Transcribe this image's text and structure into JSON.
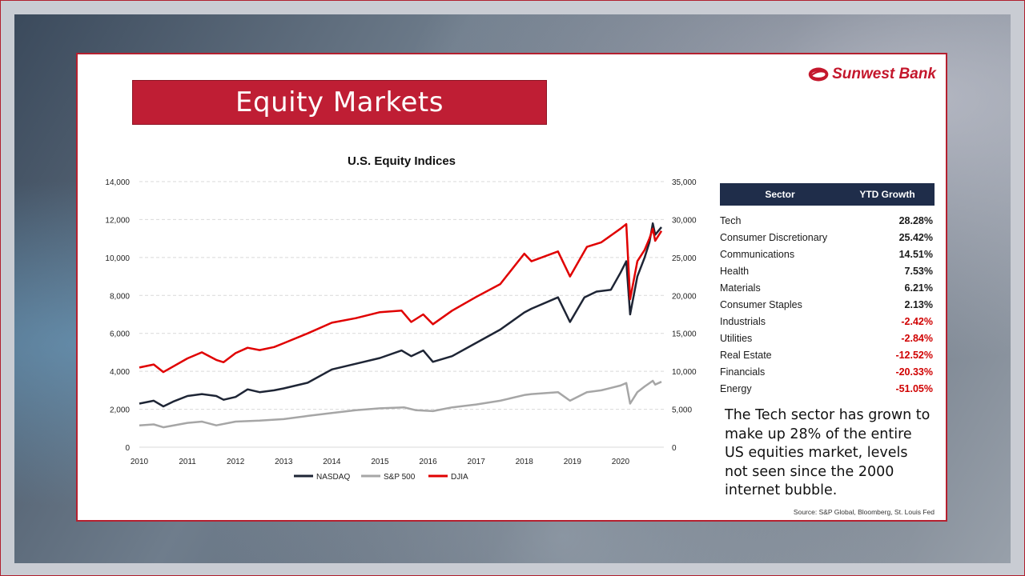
{
  "slide": {
    "title": "Equity Markets",
    "logo_text": "Sunwest Bank",
    "note": "The Tech sector has grown to make up 28% of the entire US equities market, levels not seen since the 2000 internet bubble.",
    "source": "Source: S&P Global, Bloomberg, St. Louis Fed"
  },
  "sector_table": {
    "headers": [
      "Sector",
      "YTD Growth"
    ],
    "rows": [
      {
        "sector": "Tech",
        "growth": "28.28%",
        "positive": true
      },
      {
        "sector": "Consumer Discretionary",
        "growth": "25.42%",
        "positive": true
      },
      {
        "sector": "Communications",
        "growth": "14.51%",
        "positive": true
      },
      {
        "sector": "Health",
        "growth": "7.53%",
        "positive": true
      },
      {
        "sector": "Materials",
        "growth": "6.21%",
        "positive": true
      },
      {
        "sector": "Consumer Staples",
        "growth": "2.13%",
        "positive": true
      },
      {
        "sector": "Industrials",
        "growth": "-2.42%",
        "positive": false
      },
      {
        "sector": "Utilities",
        "growth": "-2.84%",
        "positive": false
      },
      {
        "sector": "Real Estate",
        "growth": "-12.52%",
        "positive": false
      },
      {
        "sector": "Financials",
        "growth": "-20.33%",
        "positive": false
      },
      {
        "sector": "Energy",
        "growth": "-51.05%",
        "positive": false
      }
    ]
  },
  "colors": {
    "brand_red": "#bf1e34",
    "header_navy": "#1f2d4a",
    "nasdaq": "#1e2535",
    "sp500": "#a6a6a6",
    "djia": "#e00000",
    "negative": "#d00000",
    "positive": "#1a1a1a"
  },
  "chart_data": {
    "type": "line",
    "title": "U.S. Equity Indices",
    "x_ticks": [
      "2010",
      "2011",
      "2012",
      "2013",
      "2014",
      "2015",
      "2016",
      "2017",
      "2018",
      "2019",
      "2020"
    ],
    "xlim": [
      2010,
      2020.9
    ],
    "y_left": {
      "lim": [
        0,
        14000
      ],
      "ticks": [
        "0",
        "2,000",
        "4,000",
        "6,000",
        "8,000",
        "10,000",
        "12,000",
        "14,000"
      ],
      "values": [
        0,
        2000,
        4000,
        6000,
        8000,
        10000,
        12000,
        14000
      ]
    },
    "y_right": {
      "lim": [
        0,
        35000
      ],
      "ticks": [
        "0",
        "5,000",
        "10,000",
        "15,000",
        "20,000",
        "25,000",
        "30,000",
        "35,000"
      ],
      "values": [
        0,
        5000,
        10000,
        15000,
        20000,
        25000,
        30000,
        35000
      ]
    },
    "grid": true,
    "legend_position": "bottom",
    "series": [
      {
        "name": "NASDAQ",
        "axis": "left",
        "x": [
          2010.0,
          2010.3,
          2010.5,
          2010.7,
          2011.0,
          2011.3,
          2011.6,
          2011.75,
          2012.0,
          2012.25,
          2012.5,
          2012.8,
          2013.0,
          2013.5,
          2014.0,
          2014.5,
          2015.0,
          2015.45,
          2015.65,
          2015.9,
          2016.1,
          2016.5,
          2017.0,
          2017.5,
          2018.0,
          2018.15,
          2018.7,
          2018.95,
          2019.25,
          2019.5,
          2019.8,
          2020.0,
          2020.12,
          2020.2,
          2020.35,
          2020.5,
          2020.6,
          2020.67,
          2020.72,
          2020.85
        ],
        "y": [
          2300,
          2450,
          2150,
          2400,
          2700,
          2800,
          2700,
          2500,
          2650,
          3050,
          2900,
          3000,
          3100,
          3400,
          4100,
          4400,
          4700,
          5100,
          4800,
          5100,
          4500,
          4800,
          5500,
          6200,
          7100,
          7300,
          7900,
          6600,
          7900,
          8200,
          8300,
          9200,
          9800,
          7000,
          9000,
          10000,
          10800,
          11800,
          11200,
          11600
        ]
      },
      {
        "name": "S&P 500",
        "axis": "left",
        "x": [
          2010.0,
          2010.3,
          2010.5,
          2011.0,
          2011.3,
          2011.6,
          2012.0,
          2012.5,
          2013.0,
          2013.5,
          2014.0,
          2014.5,
          2015.0,
          2015.5,
          2015.75,
          2016.1,
          2016.5,
          2017.0,
          2017.5,
          2018.0,
          2018.15,
          2018.7,
          2018.95,
          2019.3,
          2019.6,
          2020.0,
          2020.12,
          2020.2,
          2020.35,
          2020.5,
          2020.67,
          2020.72,
          2020.85
        ],
        "y": [
          1150,
          1200,
          1050,
          1280,
          1350,
          1150,
          1350,
          1400,
          1480,
          1650,
          1800,
          1950,
          2050,
          2100,
          1950,
          1900,
          2100,
          2250,
          2450,
          2750,
          2800,
          2900,
          2450,
          2900,
          3000,
          3250,
          3380,
          2300,
          2900,
          3200,
          3500,
          3300,
          3450
        ]
      },
      {
        "name": "DJIA",
        "axis": "right",
        "x": [
          2010.0,
          2010.3,
          2010.5,
          2011.0,
          2011.3,
          2011.6,
          2011.75,
          2012.0,
          2012.25,
          2012.5,
          2012.8,
          2013.0,
          2013.5,
          2014.0,
          2014.5,
          2015.0,
          2015.45,
          2015.65,
          2015.9,
          2016.1,
          2016.5,
          2017.0,
          2017.5,
          2018.0,
          2018.15,
          2018.7,
          2018.95,
          2019.3,
          2019.6,
          2020.0,
          2020.12,
          2020.2,
          2020.35,
          2020.5,
          2020.6,
          2020.67,
          2020.72,
          2020.85
        ],
        "y": [
          10500,
          10900,
          9900,
          11700,
          12500,
          11500,
          11200,
          12400,
          13100,
          12800,
          13200,
          13700,
          15000,
          16400,
          17000,
          17800,
          18000,
          16500,
          17500,
          16200,
          18000,
          19800,
          21500,
          25500,
          24500,
          25800,
          22500,
          26400,
          27000,
          28800,
          29400,
          19500,
          24500,
          26000,
          27500,
          28800,
          27200,
          28500
        ]
      }
    ]
  }
}
